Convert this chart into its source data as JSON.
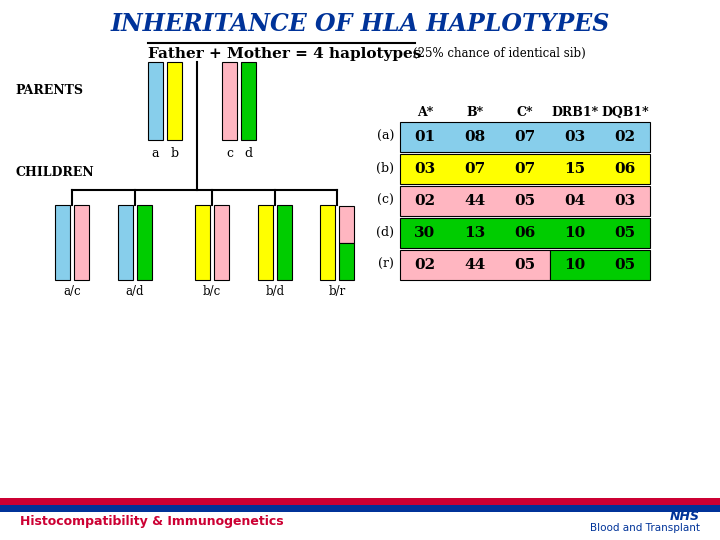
{
  "title": "INHERITANCE OF HLA HAPLOTYPES",
  "subtitle_main": "Father + Mother = 4 haplotypes",
  "subtitle_small": "(25% chance of identical sib)",
  "parents_label": "PARENTS",
  "children_label": "CHILDREN",
  "parent_labels": [
    "a",
    "b",
    "c",
    "d"
  ],
  "child_labels": [
    "a/c",
    "a/d",
    "b/c",
    "b/d",
    "b/r"
  ],
  "haplotype_colors": {
    "a": "#87CEEB",
    "b": "#FFFF00",
    "c": "#FFB6C1",
    "d": "#00CC00"
  },
  "table_headers": [
    "A*",
    "B*",
    "C*",
    "DRB1*",
    "DQB1*"
  ],
  "table_rows": [
    {
      "label": "(a)",
      "color": "#87CEEB",
      "values": [
        "01",
        "08",
        "07",
        "03",
        "02"
      ],
      "split_col": -1,
      "split_color": ""
    },
    {
      "label": "(b)",
      "color": "#FFFF00",
      "values": [
        "03",
        "07",
        "07",
        "15",
        "06"
      ],
      "split_col": -1,
      "split_color": ""
    },
    {
      "label": "(c)",
      "color": "#FFB6C1",
      "values": [
        "02",
        "44",
        "05",
        "04",
        "03"
      ],
      "split_col": -1,
      "split_color": ""
    },
    {
      "label": "(d)",
      "color": "#00CC00",
      "values": [
        "30",
        "13",
        "06",
        "10",
        "05"
      ],
      "split_col": -1,
      "split_color": ""
    },
    {
      "label": "(r)",
      "color": "#FFB6C1",
      "values": [
        "02",
        "44",
        "05",
        "10",
        "05"
      ],
      "split_col": 3,
      "split_color": "#00CC00"
    }
  ],
  "child_pairs": [
    [
      "a",
      "c"
    ],
    [
      "a",
      "d"
    ],
    [
      "b",
      "c"
    ],
    [
      "b",
      "d"
    ],
    [
      "b",
      "r"
    ]
  ],
  "footer_left": "Histocompatibility & Immunogenetics",
  "footer_left_color": "#CC0033",
  "footer_right1": "NHS",
  "footer_right2": "Blood and Transplant",
  "footer_right_color": "#003399",
  "footer_bar_red": "#CC0033",
  "footer_bar_blue": "#003399",
  "bg_color": "#FFFFFF",
  "title_color": "#003399",
  "text_color": "#000000"
}
